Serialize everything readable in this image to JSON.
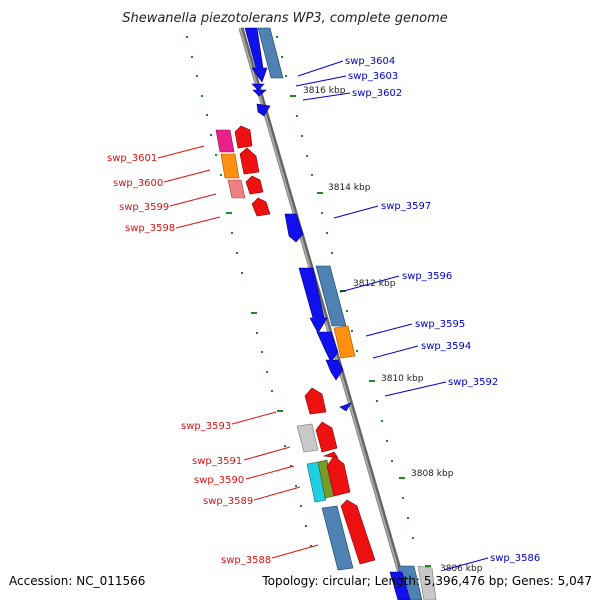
{
  "title": "Shewanella piezotolerans WP3, complete genome",
  "footer": {
    "accession": "Accession: NC_011566",
    "topology": "Topology: circular; Length: 5,396,476 bp; Genes: 5,047"
  },
  "colors": {
    "backbone": "#808080",
    "tick": "#228822",
    "forward_label": "#0000cc",
    "reverse_label": "#dd1111",
    "forward_gene": "#1111ee",
    "reverse_gene": "#ee1111",
    "cds": "#4d82b3"
  },
  "kbp_ticks": [
    "3816 kbp",
    "3814 kbp",
    "3812 kbp",
    "3810 kbp",
    "3808 kbp",
    "3806 kbp"
  ],
  "labels": {
    "forward": [
      "swp_3604",
      "swp_3603",
      "swp_3602",
      "swp_3597",
      "swp_3596",
      "swp_3595",
      "swp_3594",
      "swp_3592",
      "swp_3586"
    ],
    "reverse": [
      "swp_3601",
      "swp_3600",
      "swp_3599",
      "swp_3598",
      "swp_3593",
      "swp_3591",
      "swp_3590",
      "swp_3589",
      "swp_3588"
    ]
  }
}
